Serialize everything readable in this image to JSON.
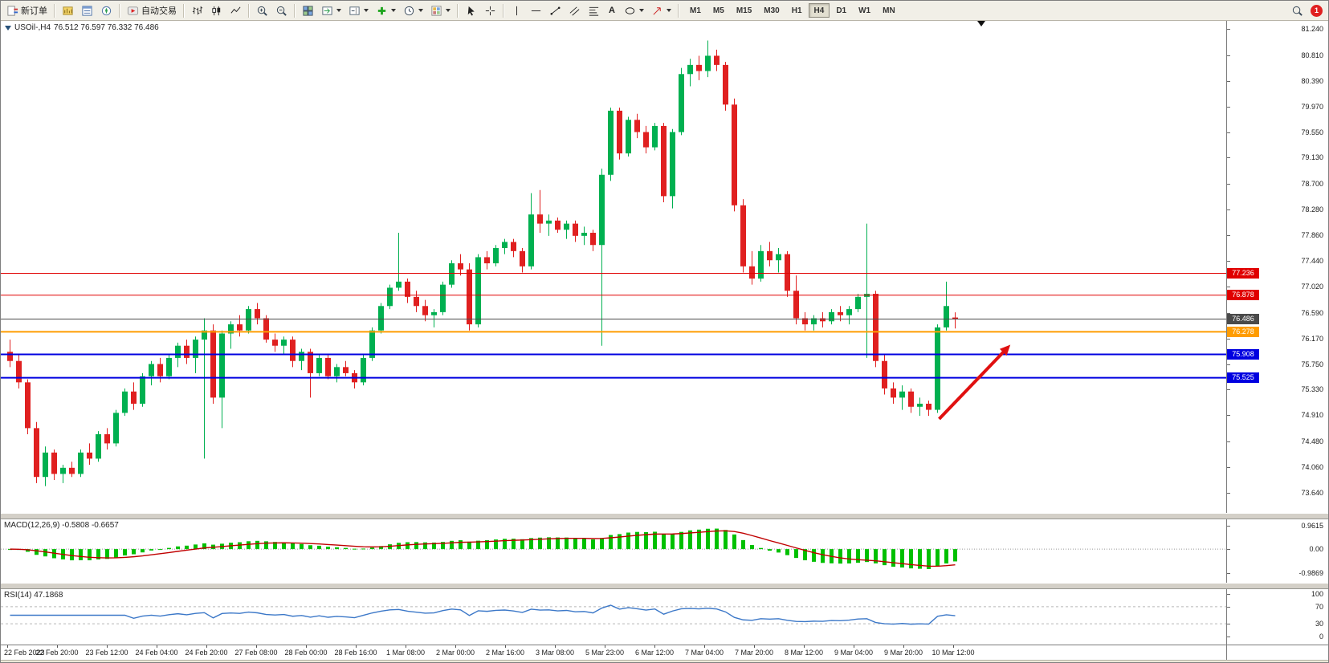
{
  "toolbar": {
    "new_order_label": "新订单",
    "autotrading_label": "自动交易",
    "text_tool_label": "A",
    "timeframes": [
      "M1",
      "M5",
      "M15",
      "M30",
      "H1",
      "H4",
      "D1",
      "W1",
      "MN"
    ],
    "active_timeframe": "H4",
    "notification_count": "1"
  },
  "price_pane": {
    "symbol_label": "USOil-,H4",
    "ohlc_values": "76.512 76.597 76.332 76.486"
  },
  "macd_panel": {
    "label": "MACD(12,26,9) -0.5808 -0.6657"
  },
  "rsi_panel": {
    "label": "RSI(14) 47.1868"
  },
  "chart_data": {
    "type": "candlestick",
    "symbol": "USOil-",
    "timeframe": "H4",
    "ohlc_current": {
      "open": 76.512,
      "high": 76.597,
      "low": 76.332,
      "close": 76.486
    },
    "colors": {
      "up": "#00B050",
      "down": "#E02020",
      "macd_bar": "#00C000",
      "macd_signal": "#C00000",
      "rsi_line": "#3C78C8"
    },
    "price_axis": {
      "min": 73.64,
      "max": 81.24,
      "ticks": [
        "81.240",
        "80.810",
        "80.390",
        "79.970",
        "79.550",
        "79.130",
        "78.700",
        "78.280",
        "77.860",
        "77.440",
        "77.020",
        "76.590",
        "76.170",
        "75.750",
        "75.330",
        "74.910",
        "74.480",
        "74.060",
        "73.640"
      ]
    },
    "hlines": [
      {
        "label": "77.236",
        "price": 77.236,
        "color": "#E00000",
        "width": 1,
        "name": "resistance-line-1"
      },
      {
        "label": "76.878",
        "price": 76.878,
        "color": "#E00000",
        "width": 1,
        "name": "resistance-line-2"
      },
      {
        "label": "76.486",
        "price": 76.486,
        "color": "#4a4a4a",
        "width": 1,
        "name": "bid-price-line"
      },
      {
        "label": "76.278",
        "price": 76.278,
        "color": "#FF9C00",
        "width": 2,
        "name": "pivot-line"
      },
      {
        "label": "75.908",
        "price": 75.908,
        "color": "#0000E0",
        "width": 2,
        "name": "support-line-1"
      },
      {
        "label": "75.525",
        "price": 75.525,
        "color": "#0000E0",
        "width": 2,
        "name": "support-line-2"
      }
    ],
    "candles": [
      [
        75.95,
        76.15,
        75.7,
        75.8
      ],
      [
        75.8,
        75.9,
        75.35,
        75.45
      ],
      [
        75.45,
        75.5,
        74.6,
        74.7
      ],
      [
        74.7,
        74.8,
        73.8,
        73.9
      ],
      [
        73.9,
        74.4,
        73.75,
        74.3
      ],
      [
        74.3,
        74.35,
        73.85,
        73.95
      ],
      [
        73.95,
        74.1,
        73.8,
        74.05
      ],
      [
        74.05,
        74.15,
        73.9,
        73.95
      ],
      [
        73.95,
        74.35,
        73.9,
        74.3
      ],
      [
        74.3,
        74.45,
        74.1,
        74.2
      ],
      [
        74.2,
        74.65,
        74.15,
        74.6
      ],
      [
        74.6,
        74.7,
        74.35,
        74.45
      ],
      [
        74.45,
        75.0,
        74.4,
        74.95
      ],
      [
        74.95,
        75.35,
        74.9,
        75.3
      ],
      [
        75.3,
        75.45,
        75.0,
        75.1
      ],
      [
        75.1,
        75.6,
        75.05,
        75.55
      ],
      [
        75.55,
        75.8,
        75.4,
        75.75
      ],
      [
        75.75,
        75.85,
        75.45,
        75.55
      ],
      [
        75.55,
        75.9,
        75.5,
        75.85
      ],
      [
        75.85,
        76.1,
        75.7,
        76.05
      ],
      [
        76.05,
        76.15,
        75.75,
        75.85
      ],
      [
        75.85,
        76.2,
        75.6,
        76.15
      ],
      [
        76.15,
        76.5,
        74.2,
        76.3
      ],
      [
        76.3,
        76.4,
        75.1,
        75.2
      ],
      [
        75.2,
        76.3,
        74.7,
        76.25
      ],
      [
        76.25,
        76.45,
        76.0,
        76.4
      ],
      [
        76.4,
        76.55,
        76.2,
        76.3
      ],
      [
        76.3,
        76.7,
        76.25,
        76.65
      ],
      [
        76.65,
        76.75,
        76.4,
        76.5
      ],
      [
        76.5,
        76.55,
        76.1,
        76.15
      ],
      [
        76.15,
        76.25,
        75.95,
        76.05
      ],
      [
        76.05,
        76.2,
        75.9,
        76.15
      ],
      [
        76.15,
        76.2,
        75.7,
        75.8
      ],
      [
        75.8,
        76.0,
        75.65,
        75.95
      ],
      [
        75.95,
        76.0,
        75.2,
        75.6
      ],
      [
        75.6,
        75.9,
        75.55,
        75.85
      ],
      [
        75.85,
        75.9,
        75.5,
        75.55
      ],
      [
        75.55,
        75.75,
        75.45,
        75.7
      ],
      [
        75.7,
        75.8,
        75.55,
        75.6
      ],
      [
        75.6,
        75.65,
        75.35,
        75.45
      ],
      [
        75.45,
        75.9,
        75.4,
        75.85
      ],
      [
        75.85,
        76.35,
        75.8,
        76.3
      ],
      [
        76.3,
        76.75,
        76.25,
        76.7
      ],
      [
        76.7,
        77.05,
        76.65,
        77.0
      ],
      [
        77.0,
        77.9,
        76.95,
        77.1
      ],
      [
        77.1,
        77.15,
        76.75,
        76.85
      ],
      [
        76.85,
        76.95,
        76.6,
        76.7
      ],
      [
        76.7,
        76.8,
        76.45,
        76.55
      ],
      [
        76.55,
        76.65,
        76.35,
        76.6
      ],
      [
        76.6,
        77.1,
        76.55,
        77.05
      ],
      [
        77.05,
        77.45,
        77.0,
        77.4
      ],
      [
        77.4,
        77.55,
        77.2,
        77.3
      ],
      [
        77.3,
        77.4,
        76.3,
        76.4
      ],
      [
        76.4,
        77.55,
        76.35,
        77.5
      ],
      [
        77.5,
        77.6,
        77.3,
        77.4
      ],
      [
        77.4,
        77.7,
        77.35,
        77.65
      ],
      [
        77.65,
        77.8,
        77.55,
        77.75
      ],
      [
        77.75,
        77.8,
        77.5,
        77.6
      ],
      [
        77.6,
        77.65,
        77.25,
        77.35
      ],
      [
        77.35,
        78.55,
        77.3,
        78.2
      ],
      [
        78.2,
        78.6,
        77.9,
        78.05
      ],
      [
        78.05,
        78.2,
        77.85,
        78.1
      ],
      [
        78.1,
        78.15,
        77.9,
        77.95
      ],
      [
        77.95,
        78.1,
        77.8,
        78.05
      ],
      [
        78.05,
        78.1,
        77.75,
        77.85
      ],
      [
        77.85,
        78.0,
        77.7,
        77.9
      ],
      [
        77.9,
        77.95,
        77.6,
        77.7
      ],
      [
        77.7,
        78.95,
        76.05,
        78.85
      ],
      [
        78.85,
        79.95,
        78.75,
        79.9
      ],
      [
        79.9,
        79.95,
        79.1,
        79.2
      ],
      [
        79.2,
        79.8,
        79.15,
        79.75
      ],
      [
        79.75,
        79.85,
        79.45,
        79.55
      ],
      [
        79.55,
        79.65,
        79.2,
        79.3
      ],
      [
        79.3,
        79.7,
        79.25,
        79.65
      ],
      [
        79.65,
        79.7,
        78.4,
        78.5
      ],
      [
        78.5,
        79.6,
        78.3,
        79.55
      ],
      [
        79.55,
        80.6,
        79.5,
        80.5
      ],
      [
        80.5,
        80.75,
        80.3,
        80.65
      ],
      [
        80.65,
        80.8,
        80.4,
        80.55
      ],
      [
        80.55,
        81.05,
        80.45,
        80.8
      ],
      [
        80.8,
        80.9,
        80.55,
        80.65
      ],
      [
        80.65,
        80.7,
        79.9,
        80.0
      ],
      [
        80.0,
        80.1,
        78.25,
        78.35
      ],
      [
        78.35,
        78.45,
        77.25,
        77.35
      ],
      [
        77.35,
        77.6,
        77.05,
        77.15
      ],
      [
        77.15,
        77.7,
        77.1,
        77.6
      ],
      [
        77.6,
        77.75,
        77.35,
        77.45
      ],
      [
        77.45,
        77.65,
        77.25,
        77.55
      ],
      [
        77.55,
        77.6,
        76.85,
        76.95
      ],
      [
        76.95,
        77.2,
        76.4,
        76.5
      ],
      [
        76.5,
        76.6,
        76.3,
        76.4
      ],
      [
        76.4,
        76.55,
        76.3,
        76.5
      ],
      [
        76.5,
        76.6,
        76.35,
        76.45
      ],
      [
        76.45,
        76.65,
        76.4,
        76.6
      ],
      [
        76.6,
        76.7,
        76.45,
        76.55
      ],
      [
        76.55,
        76.7,
        76.4,
        76.65
      ],
      [
        76.65,
        76.9,
        76.6,
        76.85
      ],
      [
        76.85,
        78.05,
        75.85,
        76.9
      ],
      [
        76.9,
        76.95,
        75.7,
        75.8
      ],
      [
        75.8,
        75.9,
        75.25,
        75.35
      ],
      [
        75.35,
        75.45,
        75.1,
        75.2
      ],
      [
        75.2,
        75.4,
        75.0,
        75.3
      ],
      [
        75.3,
        75.35,
        74.95,
        75.05
      ],
      [
        75.05,
        75.2,
        74.9,
        75.1
      ],
      [
        75.1,
        75.15,
        74.9,
        75.0
      ],
      [
        75.0,
        76.4,
        74.95,
        76.35
      ],
      [
        76.35,
        77.1,
        76.3,
        76.7
      ],
      [
        76.512,
        76.597,
        76.332,
        76.486
      ]
    ],
    "time_labels": [
      "22 Feb 2023",
      "22 Feb 20:00",
      "23 Feb 12:00",
      "24 Feb 04:00",
      "24 Feb 20:00",
      "27 Feb 08:00",
      "28 Feb 00:00",
      "28 Feb 16:00",
      "1 Mar 08:00",
      "2 Mar 00:00",
      "2 Mar 16:00",
      "3 Mar 08:00",
      "5 Mar 23:00",
      "6 Mar 12:00",
      "7 Mar 04:00",
      "7 Mar 20:00",
      "8 Mar 12:00",
      "9 Mar 04:00",
      "9 Mar 20:00",
      "10 Mar 12:00"
    ],
    "arrow": {
      "from_index": 105.5,
      "from_price": 74.85,
      "to_index": 113,
      "to_price": 75.98,
      "color": "#E01010"
    },
    "macd": {
      "fast": 12,
      "slow": 26,
      "signal": 9,
      "values_label": "-0.5808 -0.6657",
      "max": 0.9615,
      "min": -0.9869,
      "scale_ticks": [
        {
          "label": "0.9615",
          "value": 0.9615
        },
        {
          "label": "0.00",
          "value": 0
        },
        {
          "label": "-0.9869",
          "value": -0.9869
        }
      ]
    },
    "rsi": {
      "period": 14,
      "value_label": "47.1868",
      "max": 100,
      "min": 0,
      "levels": [
        70,
        30
      ],
      "scale_ticks": [
        {
          "label": "100",
          "value": 100
        },
        {
          "label": "70",
          "value": 70
        },
        {
          "label": "30",
          "value": 30
        },
        {
          "label": "0",
          "value": 0
        }
      ]
    }
  }
}
